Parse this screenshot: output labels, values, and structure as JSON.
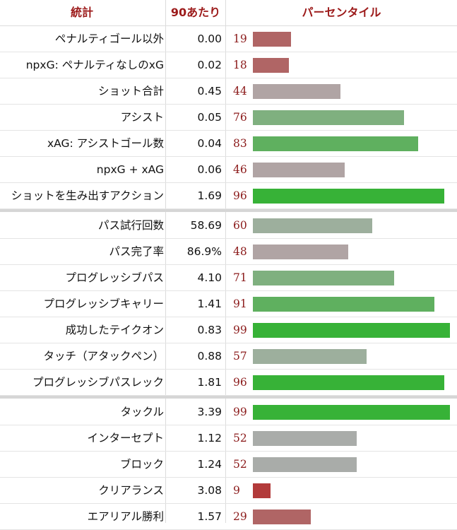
{
  "headers": {
    "stat": "統計",
    "per90": "90あたり",
    "percentile": "パーセンタイル"
  },
  "colors": {
    "header_text": "#9c1a1a",
    "percentile_text": "#8b1a1a",
    "scale": [
      "#b23a3a",
      "#b06565",
      "#b0a4a4",
      "#a9aca9",
      "#9daf9d",
      "#7fb07f",
      "#5fb05f",
      "#37b237"
    ]
  },
  "groups": [
    {
      "rows": [
        {
          "stat": "ペナルティゴール以外",
          "per90": "0.00",
          "percentile": 19
        },
        {
          "stat": "npxG: ペナルティなしのxG",
          "per90": "0.02",
          "percentile": 18
        },
        {
          "stat": "ショット合計",
          "per90": "0.45",
          "percentile": 44
        },
        {
          "stat": "アシスト",
          "per90": "0.05",
          "percentile": 76
        },
        {
          "stat": "xAG: アシストゴール数",
          "per90": "0.04",
          "percentile": 83
        },
        {
          "stat": "npxG + xAG",
          "per90": "0.06",
          "percentile": 46
        },
        {
          "stat": "ショットを生み出すアクション",
          "per90": "1.69",
          "percentile": 96
        }
      ]
    },
    {
      "rows": [
        {
          "stat": "パス試行回数",
          "per90": "58.69",
          "percentile": 60
        },
        {
          "stat": "パス完了率",
          "per90": "86.9%",
          "percentile": 48
        },
        {
          "stat": "プログレッシブパス",
          "per90": "4.10",
          "percentile": 71
        },
        {
          "stat": "プログレッシブキャリー",
          "per90": "1.41",
          "percentile": 91
        },
        {
          "stat": "成功したテイクオン",
          "per90": "0.83",
          "percentile": 99
        },
        {
          "stat": "タッチ（アタックペン）",
          "per90": "0.88",
          "percentile": 57
        },
        {
          "stat": "プログレッシブパスレック",
          "per90": "1.81",
          "percentile": 96
        }
      ]
    },
    {
      "rows": [
        {
          "stat": "タックル",
          "per90": "3.39",
          "percentile": 99
        },
        {
          "stat": "インターセプト",
          "per90": "1.12",
          "percentile": 52
        },
        {
          "stat": "ブロック",
          "per90": "1.24",
          "percentile": 52
        },
        {
          "stat": "クリアランス",
          "per90": "3.08",
          "percentile": 9
        },
        {
          "stat": "エアリアル勝利",
          "per90": "1.57",
          "percentile": 29
        }
      ]
    }
  ]
}
